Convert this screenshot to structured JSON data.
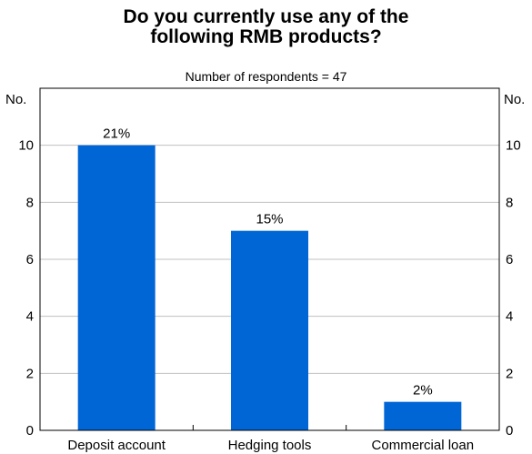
{
  "chart_data": {
    "type": "bar",
    "title_lines": [
      "Do you currently use any of the",
      "following RMB products?"
    ],
    "subtitle": "Number of respondents = 47",
    "ylabel_left": "No.",
    "ylabel_right": "No.",
    "categories": [
      "Deposit account",
      "Hedging tools",
      "Commercial loan"
    ],
    "values": [
      10,
      7,
      1
    ],
    "data_labels": [
      "21%",
      "15%",
      "2%"
    ],
    "ylim": [
      0,
      12
    ],
    "yticks": [
      0,
      2,
      4,
      6,
      8,
      10
    ],
    "grid": true,
    "bar_color": "#0066d6",
    "grid_color": "#c0c0c0"
  }
}
